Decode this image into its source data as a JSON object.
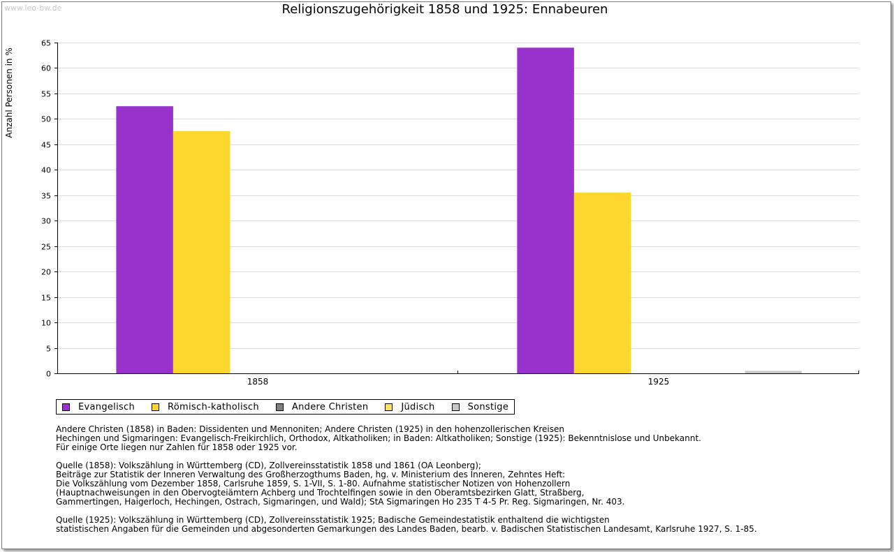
{
  "watermark": "www.leo-bw.de",
  "legend": [
    {
      "label": "Evangelisch",
      "color": "#9932cc"
    },
    {
      "label": "Römisch-katholisch",
      "color": "#fdd62e"
    },
    {
      "label": "Andere Christen",
      "color": "#808080"
    },
    {
      "label": "Jüdisch",
      "color": "#ffe066"
    },
    {
      "label": "Sonstige",
      "color": "#c8c8c8"
    }
  ],
  "notes": {
    "note1": "Andere Christen (1858) in Baden: Dissidenten und Mennoniten; Andere Christen (1925) in den hohenzollerischen Kreisen\nHechingen und Sigmaringen: Evangelisch-Freikirchlich, Orthodox, Altkatholiken; in Baden: Altkatholiken; Sonstige (1925): Bekenntnislose und Unbekannt.\nFür einige Orte liegen nur Zahlen für 1858 oder 1925 vor.",
    "note2": "Quelle (1858): Volkszählung in Württemberg (CD), Zollvereinsstatistik 1858 und 1861 (OA Leonberg);\nBeiträge zur Statistik der Inneren Verwaltung des Großherzogthums Baden, hg. v. Ministerium des Inneren, Zehntes Heft:\nDie Volkszählung vom Dezember 1858, Carlsruhe 1859, S. 1-VII, S. 1-80. Aufnahme statistischer Notizen von Hohenzollern\n(Hauptnachweisungen in den Obervogteiämtern Achberg und Trochtelfingen sowie in den Oberamtsbezirken Glatt, Straßberg,\nGammertingen, Haigerloch, Hechingen, Ostrach, Sigmaringen, und Wald); StA Sigmaringen Ho 235 T 4-5 Pr. Reg. Sigmaringen, Nr. 403.",
    "note3": "Quelle (1925): Volkszählung in Württemberg (CD), Zollvereinsstatistik 1925; Badische Gemeindestatistik enthaltend die wichtigsten\nstatistischen Angaben für die Gemeinden und abgesonderten Gemarkungen des Landes Baden, bearb. v. Badischen Statistischen Landesamt, Karlsruhe 1927, S. 1-85."
  },
  "chart_data": {
    "type": "bar",
    "title": "Religionszugehörigkeit 1858 und 1925: Ennabeuren",
    "xlabel": "",
    "ylabel": "Anzahl Personen in %",
    "categories": [
      "1858",
      "1925"
    ],
    "ylim": [
      0,
      65
    ],
    "yticks": [
      0,
      5,
      10,
      15,
      20,
      25,
      30,
      35,
      40,
      45,
      50,
      55,
      60,
      65
    ],
    "grid": true,
    "legend_position": "bottom",
    "series": [
      {
        "name": "Evangelisch",
        "color": "#9932cc",
        "values": [
          52.5,
          64.0
        ]
      },
      {
        "name": "Römisch-katholisch",
        "color": "#fdd62e",
        "values": [
          47.6,
          35.5
        ]
      },
      {
        "name": "Andere Christen",
        "color": "#808080",
        "values": [
          0,
          0
        ]
      },
      {
        "name": "Jüdisch",
        "color": "#ffe066",
        "values": [
          0,
          0
        ]
      },
      {
        "name": "Sonstige",
        "color": "#c8c8c8",
        "values": [
          0,
          0.5
        ]
      }
    ]
  }
}
